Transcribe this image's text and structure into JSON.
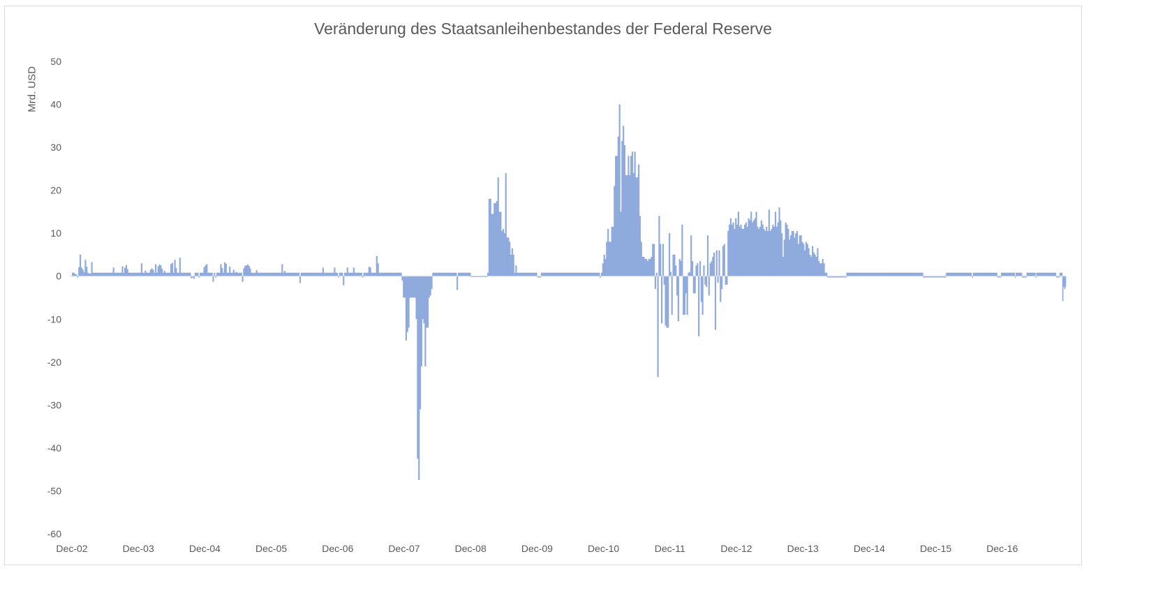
{
  "chart_data": {
    "type": "bar",
    "title": "Veränderung des Staatsanleihenbestandes der Federal Reserve",
    "xlabel": "",
    "ylabel": "Mrd. USD",
    "ylim": [
      -60,
      50
    ],
    "yticks": [
      50,
      40,
      30,
      20,
      10,
      0,
      -10,
      -20,
      -30,
      -40,
      -50,
      -60
    ],
    "xticks": [
      "Dec-02",
      "Dec-03",
      "Dec-04",
      "Dec-05",
      "Dec-06",
      "Dec-07",
      "Dec-08",
      "Dec-09",
      "Dec-10",
      "Dec-11",
      "Dec-12",
      "Dec-13",
      "Dec-14",
      "Dec-15",
      "Dec-16"
    ],
    "grid": false,
    "legend": "none",
    "bar_color": "#8faadc",
    "frequency": "weekly",
    "start": "Dec-02",
    "segments": [
      {
        "from": "Dec-02",
        "to": "Dec-03",
        "values": [
          0.8,
          0.8,
          0.5,
          0.4,
          -0.3,
          2.1,
          5.0,
          2.0,
          1.5,
          0.9,
          3.8,
          2.2,
          0.8,
          0.6,
          0.6,
          3.3,
          0.8,
          0.8,
          0.8,
          0.8,
          0.8,
          0.8,
          0.8,
          0.8,
          0.8,
          0.8,
          0.8,
          0.8,
          0.8,
          0.8,
          0.8,
          0.8,
          2.0,
          0.8,
          0.8,
          0.8,
          0.8,
          0.8,
          0.8,
          2.3,
          0.8,
          2.0,
          2.6,
          1.6,
          0.8,
          0.8,
          0.8,
          0.8,
          0.8,
          0.8,
          0.8,
          0.8
        ]
      },
      {
        "from": "Dec-03",
        "to": "Dec-04",
        "values": [
          0.8,
          0.8,
          3.0,
          0.8,
          0.8,
          1.3,
          0.8,
          0.8,
          0.8,
          1.5,
          1.8,
          1.5,
          0.8,
          2.8,
          0.8,
          2.3,
          2.7,
          2.5,
          1.7,
          0.8,
          1.2,
          0.8,
          0.8,
          0.8,
          0.8,
          2.8,
          3.1,
          0.8,
          3.8,
          1.9,
          0.8,
          0.8,
          4.3,
          0.8,
          0.8,
          0.8,
          0.8,
          0.8,
          0.8,
          0.8,
          0.8,
          -0.5,
          -0.3,
          -0.6,
          0.8,
          0.8,
          0.8,
          -0.3,
          0.8,
          0.8,
          0.8,
          2.1
        ]
      },
      {
        "from": "Dec-04",
        "to": "Dec-05",
        "values": [
          2.5,
          2.8,
          0.8,
          0.8,
          0.8,
          0.8,
          -1.3,
          0.8,
          -0.3,
          0.8,
          0.8,
          0.8,
          2.8,
          1.9,
          0.8,
          3.2,
          2.9,
          0.8,
          0.8,
          2.2,
          0.8,
          0.8,
          1.5,
          0.8,
          1.0,
          0.8,
          0.8,
          0.8,
          0.8,
          -1.3,
          1.8,
          2.4,
          2.5,
          2.7,
          2.4,
          1.8,
          0.8,
          0.8,
          0.8,
          0.8,
          1.4,
          0.8,
          0.8,
          0.8,
          0.8,
          0.8,
          0.8,
          0.8,
          0.8,
          0.8,
          0.8,
          0.8
        ]
      },
      {
        "from": "Dec-05",
        "to": "Dec-06",
        "values": [
          0.8,
          0.8,
          0.8,
          0.8,
          0.8,
          0.8,
          0.8,
          0.8,
          2.8,
          0.8,
          1.2,
          0.8,
          0.8,
          0.8,
          0.8,
          0.8,
          0.8,
          0.8,
          0.8,
          0.8,
          0.8,
          0.8,
          -1.6,
          0.8,
          0.8,
          0.8,
          0.8,
          0.8,
          0.8,
          0.8,
          0.8,
          0.8,
          0.8,
          0.8,
          0.8,
          0.8,
          0.8,
          0.8,
          0.8,
          0.8,
          2.0,
          0.8,
          0.8,
          0.8,
          0.8,
          0.8,
          0.8,
          0.8,
          0.8,
          2.0,
          0.8,
          0.8
        ]
      },
      {
        "from": "Dec-06",
        "to": "Dec-07",
        "values": [
          -0.3,
          0.8,
          0.8,
          0.8,
          -2.1,
          0.8,
          0.8,
          2.0,
          0.8,
          0.8,
          0.8,
          0.8,
          2.0,
          0.8,
          0.8,
          0.8,
          0.8,
          0.8,
          0.8,
          -0.3,
          0.8,
          0.8,
          0.8,
          0.8,
          2.2,
          2.0,
          0.8,
          0.8,
          0.8,
          0.8,
          4.7,
          3.0,
          0.8,
          0.8,
          0.8,
          0.8,
          0.8,
          0.8,
          0.8,
          0.8,
          0.8,
          0.8,
          0.8,
          0.8,
          0.8,
          0.8,
          0.8,
          0.8,
          0.8,
          0.8,
          -1.0,
          -5.0
        ]
      },
      {
        "from": "Dec-07",
        "to": "Dec-08",
        "values": [
          -5.0,
          -15.0,
          -13.0,
          -12.0,
          -5.0,
          -5.0,
          -5.0,
          -5.0,
          -5.0,
          -10.0,
          -42.5,
          -47.5,
          -31.0,
          -21.0,
          -10.0,
          -11.0,
          -21.0,
          -12.0,
          -12.0,
          -5.0,
          -4.5,
          -3.0,
          0.8,
          0.8,
          0.8,
          0.8,
          0.8,
          0.8,
          0.8,
          0.8,
          0.8,
          0.8,
          0.8,
          0.8,
          0.8,
          0.8,
          0.8,
          0.8,
          0.8,
          0.8,
          0.8,
          -3.2,
          0.8,
          0.8,
          0.8,
          0.8,
          0.8,
          0.8,
          0.8,
          0.8,
          0.8,
          0.8
        ]
      },
      {
        "from": "Dec-08",
        "to": "Dec-09",
        "values": [
          -0.2,
          -0.2,
          -0.2,
          -0.2,
          -0.2,
          -0.2,
          -0.2,
          -0.2,
          -0.2,
          -0.2,
          -0.2,
          -0.2,
          -0.2,
          0.8,
          18.0,
          18.0,
          14.5,
          14.5,
          17.0,
          17.0,
          17.5,
          23.0,
          15.0,
          15.0,
          10.5,
          11.0,
          10.0,
          24.0,
          9.0,
          9.0,
          8.0,
          5.0,
          6.5,
          5.0,
          0.8,
          2.5,
          0.8,
          0.8,
          0.8,
          0.8,
          0.8,
          0.8,
          0.8,
          0.8,
          0.8,
          0.8,
          0.8,
          0.8,
          0.8,
          0.8,
          0.8,
          0.8
        ]
      },
      {
        "from": "Dec-09",
        "to": "Dec-10",
        "values": [
          -0.3,
          -0.3,
          -0.3,
          0.8,
          0.8,
          0.8,
          0.8,
          0.8,
          0.8,
          0.8,
          0.8,
          0.8,
          0.8,
          0.8,
          0.8,
          0.8,
          0.8,
          0.8,
          0.8,
          0.8,
          0.8,
          0.8,
          0.8,
          0.8,
          0.8,
          0.8,
          0.8,
          0.8,
          0.8,
          0.8,
          0.8,
          0.8,
          0.8,
          0.8,
          0.8,
          0.8,
          0.8,
          0.8,
          0.8,
          0.8,
          0.8,
          0.8,
          0.8,
          0.8,
          0.8,
          0.8,
          0.8,
          0.8,
          0.8,
          -0.3,
          0.8,
          3.0
        ]
      },
      {
        "from": "Dec-10",
        "to": "Dec-11",
        "values": [
          5.0,
          4.0,
          8.0,
          11.0,
          8.0,
          8.0,
          11.5,
          11.5,
          21.0,
          28.0,
          28.0,
          32.5,
          40.0,
          15.0,
          31.5,
          35.0,
          30.5,
          23.5,
          23.5,
          28.0,
          23.5,
          28.0,
          29.0,
          24.0,
          29.0,
          23.0,
          23.0,
          26.0,
          14.0,
          8.0,
          4.5,
          4.5,
          4.0,
          4.0,
          3.5,
          4.0,
          4.0,
          4.5,
          7.5,
          7.5,
          -3.0,
          0.8,
          -23.5,
          14.0,
          7.5,
          -11.0,
          7.5,
          -2.0,
          -11.5,
          -12.0,
          -12.0,
          10.0
        ]
      },
      {
        "from": "Dec-11",
        "to": "Dec-12",
        "values": [
          1.0,
          -9.0,
          5.0,
          5.0,
          2.5,
          -4.5,
          -10.5,
          4.0,
          3.5,
          12.0,
          -9.0,
          -9.0,
          -4.0,
          -9.0,
          0.8,
          1.0,
          9.5,
          3.5,
          -4.0,
          -4.0,
          2.5,
          3.0,
          -14.0,
          3.5,
          -6.0,
          -9.0,
          2.5,
          -2.0,
          -2.5,
          9.5,
          -4.5,
          3.0,
          3.5,
          4.5,
          5.5,
          -12.5,
          6.0,
          -1.5,
          6.0,
          -6.0,
          -3.0,
          7.0,
          7.5,
          -2.0,
          -2.0,
          10.5,
          12.0,
          13.5,
          12.0,
          12.5,
          11.0,
          13.5
        ]
      },
      {
        "from": "Dec-12",
        "to": "Dec-13",
        "values": [
          12.0,
          15.0,
          11.5,
          12.0,
          11.0,
          11.0,
          12.0,
          12.5,
          11.5,
          13.5,
          13.0,
          15.0,
          12.5,
          13.0,
          13.5,
          15.0,
          11.5,
          11.0,
          11.5,
          13.0,
          12.0,
          11.0,
          10.5,
          11.5,
          10.5,
          15.5,
          10.5,
          11.0,
          12.0,
          11.5,
          15.0,
          11.5,
          12.5,
          16.0,
          13.0,
          10.0,
          4.5,
          8.5,
          12.5,
          12.0,
          11.0,
          8.5,
          9.5,
          10.5,
          10.5,
          9.0,
          10.0,
          10.5,
          7.5,
          9.5,
          9.5,
          8.0
        ]
      },
      {
        "from": "Dec-13",
        "to": "Dec-14",
        "values": [
          7.5,
          6.0,
          8.0,
          7.5,
          6.5,
          5.0,
          4.5,
          7.0,
          5.5,
          5.0,
          4.5,
          6.5,
          3.5,
          3.0,
          3.0,
          4.0,
          3.0,
          0.8,
          0.8,
          -0.3,
          -0.3,
          -0.3,
          -0.3,
          -0.3,
          -0.3,
          -0.3,
          -0.3,
          -0.3,
          -0.3,
          -0.3,
          -0.3,
          -0.3,
          -0.3,
          -0.3,
          0.8,
          0.8,
          0.8,
          0.8,
          0.8,
          0.8,
          0.8,
          0.8,
          0.8,
          0.8,
          0.8,
          0.8,
          0.8,
          0.8,
          0.8,
          0.8,
          0.8,
          0.8
        ]
      },
      {
        "from": "Dec-14",
        "to": "Dec-15",
        "values": [
          0.8,
          0.8,
          0.8,
          0.8,
          0.8,
          0.8,
          0.8,
          0.8,
          0.8,
          0.8,
          0.8,
          0.8,
          0.8,
          0.8,
          0.8,
          0.8,
          0.8,
          0.8,
          0.8,
          0.8,
          0.8,
          0.8,
          0.8,
          0.8,
          0.8,
          0.8,
          0.8,
          0.8,
          0.8,
          0.8,
          0.8,
          0.8,
          0.8,
          0.8,
          0.8,
          0.8,
          0.8,
          0.8,
          0.8,
          0.8,
          0.8,
          0.8,
          -0.3,
          -0.3,
          -0.3,
          -0.3,
          -0.3,
          -0.3,
          -0.3,
          -0.3,
          -0.3,
          -0.3
        ]
      },
      {
        "from": "Dec-15",
        "to": "Dec-16",
        "values": [
          -0.3,
          -0.3,
          -0.3,
          -0.3,
          -0.3,
          -0.3,
          -0.3,
          -0.3,
          0.8,
          0.8,
          0.8,
          0.8,
          0.8,
          0.8,
          0.8,
          0.8,
          0.8,
          0.8,
          0.8,
          0.8,
          0.8,
          0.8,
          0.8,
          0.8,
          0.8,
          0.8,
          0.8,
          0.8,
          -0.3,
          0.8,
          0.8,
          0.8,
          0.8,
          0.8,
          0.8,
          0.8,
          0.8,
          0.8,
          0.8,
          0.8,
          0.8,
          0.8,
          0.8,
          0.8,
          0.8,
          0.8,
          0.8,
          0.8,
          -0.3,
          -0.3,
          -0.3,
          0.8
        ]
      },
      {
        "from": "Dec-16",
        "to": "end",
        "values": [
          0.8,
          0.8,
          0.8,
          0.8,
          0.8,
          0.8,
          0.8,
          0.8,
          0.8,
          0.8,
          0.8,
          0.8,
          0.8,
          0.8,
          -0.3,
          0.8,
          0.8,
          0.8,
          0.8,
          0.8,
          0.8,
          0.8,
          -0.3,
          -0.3,
          -0.3,
          -0.3,
          -0.3,
          0.8,
          0.8,
          0.8,
          0.8,
          0.8,
          0.8,
          0.8,
          0.8,
          0.8,
          0.8,
          -0.3,
          0.8,
          0.8,
          0.8,
          0.8,
          0.8,
          0.8,
          0.8,
          0.8,
          0.8,
          0.8,
          0.8,
          0.8,
          0.8,
          0.8,
          0.8,
          0.8,
          0.8,
          0.8,
          0.8,
          0.8,
          0.8,
          0.8,
          -0.3,
          -0.3,
          -0.3,
          -0.3,
          0.8,
          0.8,
          0.8,
          -5.8,
          -2.5,
          -3.0,
          -2.5
        ]
      }
    ]
  }
}
